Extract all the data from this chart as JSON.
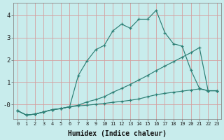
{
  "xlabel": "Humidex (Indice chaleur)",
  "background_color": "#c8ecec",
  "grid_color": "#d4a0a0",
  "line_color": "#2d7f75",
  "xlim_min": -0.5,
  "xlim_max": 23.5,
  "ylim_min": -0.65,
  "ylim_max": 4.55,
  "x": [
    0,
    1,
    2,
    3,
    4,
    5,
    6,
    7,
    8,
    9,
    10,
    11,
    12,
    13,
    14,
    15,
    16,
    17,
    18,
    19,
    20,
    21,
    22,
    23
  ],
  "line_peak": [
    -0.28,
    -0.47,
    -0.43,
    -0.33,
    -0.23,
    -0.18,
    -0.1,
    1.3,
    1.95,
    2.45,
    2.65,
    3.3,
    3.6,
    3.42,
    3.82,
    3.82,
    4.22,
    3.22,
    2.72,
    2.62,
    1.55,
    0.72,
    0.62,
    0.62
  ],
  "line_flat": [
    -0.28,
    -0.47,
    -0.43,
    -0.33,
    -0.23,
    -0.18,
    -0.1,
    -0.06,
    -0.03,
    0.01,
    0.05,
    0.1,
    0.14,
    0.19,
    0.25,
    0.35,
    0.44,
    0.5,
    0.55,
    0.6,
    0.65,
    0.7,
    0.62,
    0.62
  ],
  "line_mid": [
    -0.28,
    -0.47,
    -0.43,
    -0.33,
    -0.23,
    -0.18,
    -0.1,
    -0.03,
    0.12,
    0.22,
    0.35,
    0.55,
    0.72,
    0.9,
    1.1,
    1.3,
    1.52,
    1.72,
    1.92,
    2.12,
    2.32,
    2.55,
    0.62,
    0.62
  ],
  "yticks": [
    0,
    1,
    2,
    3,
    4
  ],
  "ytick_labels": [
    "-0",
    "1",
    "2",
    "3",
    "4"
  ],
  "xtick_labels": [
    "0",
    "1",
    "2",
    "3",
    "4",
    "5",
    "6",
    "7",
    "8",
    "9",
    "10",
    "11",
    "12",
    "13",
    "14",
    "15",
    "16",
    "17",
    "18",
    "19",
    "20",
    "21",
    "22",
    "23"
  ]
}
